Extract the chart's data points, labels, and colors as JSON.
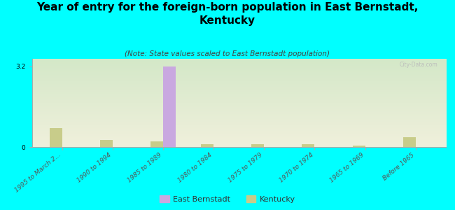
{
  "title": "Year of entry for the foreign-born population in East Bernstadt,\nKentucky",
  "subtitle": "(Note: State values scaled to East Bernstadt population)",
  "categories": [
    "1995 to March 2...",
    "1990 to 1994",
    "1985 to 1989",
    "1980 to 1984",
    "1975 to 1979",
    "1970 to 1974",
    "1965 to 1969",
    "Before 1965"
  ],
  "east_bernstadt": [
    0.0,
    0.0,
    3.2,
    0.0,
    0.0,
    0.0,
    0.0,
    0.0
  ],
  "kentucky": [
    0.75,
    0.28,
    0.22,
    0.1,
    0.1,
    0.1,
    0.06,
    0.38
  ],
  "eb_color": "#c9a8e0",
  "ky_color": "#c8cc8a",
  "background_color": "#00ffff",
  "ylim": [
    0,
    3.5
  ],
  "yticks": [
    0,
    3.2
  ],
  "bar_width": 0.25,
  "title_fontsize": 11,
  "subtitle_fontsize": 7.5,
  "tick_fontsize": 6.5,
  "watermark": "City-Data.com",
  "legend_eb": "East Bernstadt",
  "legend_ky": "Kentucky"
}
